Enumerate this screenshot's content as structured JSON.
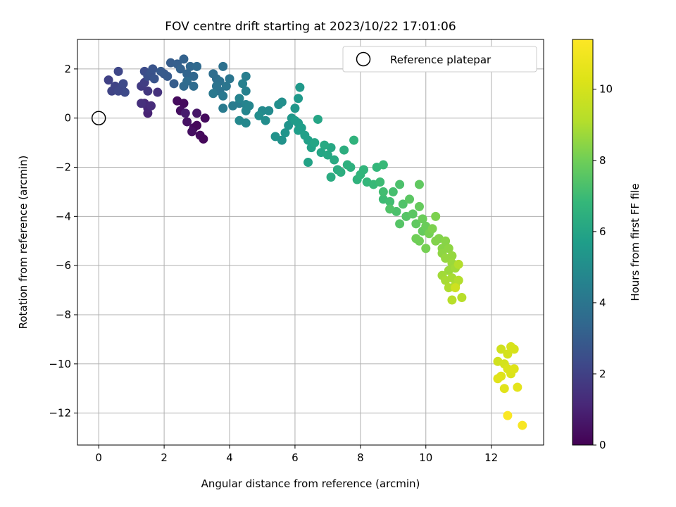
{
  "chart_data": {
    "type": "scatter",
    "title": "FOV centre drift starting at 2023/10/22 17:01:06",
    "xlabel": "Angular distance from reference (arcmin)",
    "ylabel": "Rotation from reference (arcmin)",
    "xlim": [
      -0.65,
      13.6
    ],
    "ylim": [
      -13.3,
      3.2
    ],
    "xticks": [
      0,
      2,
      4,
      6,
      8,
      10,
      12
    ],
    "yticks": [
      2,
      0,
      -2,
      -4,
      -6,
      -8,
      -10,
      -12
    ],
    "grid": true,
    "legend": {
      "position": "top-right",
      "entries": [
        "Reference platepar"
      ]
    },
    "reference_point": {
      "x": 0,
      "y": 0,
      "label": "Reference platepar"
    },
    "colorbar": {
      "label": "Hours from first FF file",
      "colormap": "viridis",
      "range": [
        0,
        11.4
      ],
      "ticks": [
        0,
        2,
        4,
        6,
        8,
        10
      ]
    },
    "points": [
      [
        2.4,
        0.7,
        0.3
      ],
      [
        2.6,
        0.6,
        0.3
      ],
      [
        2.5,
        0.3,
        0.4
      ],
      [
        2.7,
        -0.15,
        0.5
      ],
      [
        2.9,
        -0.4,
        0.3
      ],
      [
        3.0,
        -0.3,
        0.2
      ],
      [
        2.85,
        -0.55,
        0.4
      ],
      [
        3.1,
        -0.7,
        0.3
      ],
      [
        3.2,
        -0.85,
        0.2
      ],
      [
        3.25,
        0.0,
        0.3
      ],
      [
        3.0,
        0.2,
        0.6
      ],
      [
        2.65,
        0.2,
        0.8
      ],
      [
        1.5,
        0.2,
        1.0
      ],
      [
        1.5,
        0.4,
        1.1
      ],
      [
        1.4,
        0.6,
        1.2
      ],
      [
        1.6,
        0.5,
        1.3
      ],
      [
        1.3,
        0.6,
        1.4
      ],
      [
        1.8,
        1.05,
        1.5
      ],
      [
        1.5,
        1.1,
        1.7
      ],
      [
        1.3,
        1.3,
        1.8
      ],
      [
        1.4,
        1.45,
        1.9
      ],
      [
        0.3,
        1.55,
        2.0
      ],
      [
        0.4,
        1.1,
        2.1
      ],
      [
        0.5,
        1.3,
        2.1
      ],
      [
        0.6,
        1.9,
        2.2
      ],
      [
        0.7,
        1.2,
        2.2
      ],
      [
        0.8,
        1.05,
        2.3
      ],
      [
        0.75,
        1.4,
        2.3
      ],
      [
        0.6,
        1.1,
        2.2
      ],
      [
        1.4,
        1.9,
        2.4
      ],
      [
        1.5,
        1.7,
        2.5
      ],
      [
        1.6,
        1.85,
        2.6
      ],
      [
        1.7,
        1.6,
        2.7
      ],
      [
        1.65,
        2.0,
        2.7
      ],
      [
        2.0,
        1.8,
        2.8
      ],
      [
        2.1,
        1.7,
        2.9
      ],
      [
        1.9,
        1.9,
        2.9
      ],
      [
        2.2,
        2.25,
        3.0
      ],
      [
        2.3,
        1.4,
        3.0
      ],
      [
        2.4,
        2.2,
        3.1
      ],
      [
        2.5,
        2.0,
        3.2
      ],
      [
        2.6,
        2.4,
        3.2
      ],
      [
        2.7,
        1.8,
        3.3
      ],
      [
        2.8,
        2.1,
        3.4
      ],
      [
        2.9,
        1.7,
        3.4
      ],
      [
        3.0,
        2.1,
        3.5
      ],
      [
        2.6,
        1.3,
        3.5
      ],
      [
        2.9,
        1.3,
        3.6
      ],
      [
        2.7,
        1.5,
        3.6
      ],
      [
        3.5,
        1.8,
        3.7
      ],
      [
        3.6,
        1.6,
        3.7
      ],
      [
        3.7,
        1.5,
        3.8
      ],
      [
        3.8,
        2.1,
        3.8
      ],
      [
        3.7,
        1.1,
        3.9
      ],
      [
        3.6,
        1.3,
        3.9
      ],
      [
        3.9,
        1.3,
        4.0
      ],
      [
        4.0,
        1.6,
        4.0
      ],
      [
        3.8,
        0.9,
        4.1
      ],
      [
        3.5,
        1.0,
        4.1
      ],
      [
        3.8,
        0.4,
        4.2
      ],
      [
        4.1,
        0.5,
        4.3
      ],
      [
        4.3,
        0.6,
        4.3
      ],
      [
        4.5,
        1.7,
        4.4
      ],
      [
        4.4,
        1.4,
        4.5
      ],
      [
        4.5,
        1.1,
        4.5
      ],
      [
        4.3,
        0.8,
        4.6
      ],
      [
        4.5,
        0.55,
        4.6
      ],
      [
        4.5,
        0.3,
        4.7
      ],
      [
        4.6,
        0.5,
        4.7
      ],
      [
        4.3,
        -0.1,
        4.8
      ],
      [
        4.5,
        -0.2,
        4.8
      ],
      [
        5.0,
        0.3,
        4.9
      ],
      [
        5.2,
        0.3,
        4.9
      ],
      [
        4.9,
        0.1,
        5.0
      ],
      [
        5.1,
        -0.1,
        5.0
      ],
      [
        5.5,
        0.55,
        5.1
      ],
      [
        5.6,
        0.65,
        5.1
      ],
      [
        5.4,
        -0.75,
        5.2
      ],
      [
        5.6,
        -0.9,
        5.2
      ],
      [
        5.7,
        -0.6,
        5.3
      ],
      [
        5.8,
        -0.3,
        5.3
      ],
      [
        5.9,
        0.0,
        5.4
      ],
      [
        6.0,
        0.4,
        5.4
      ],
      [
        6.1,
        0.8,
        5.5
      ],
      [
        6.15,
        1.25,
        5.5
      ],
      [
        6.0,
        -0.1,
        5.6
      ],
      [
        6.1,
        -0.2,
        5.6
      ],
      [
        6.2,
        -0.4,
        5.7
      ],
      [
        6.1,
        -0.5,
        5.7
      ],
      [
        6.3,
        -0.7,
        5.8
      ],
      [
        6.4,
        -0.9,
        5.8
      ],
      [
        6.5,
        -1.2,
        5.9
      ],
      [
        6.4,
        -1.8,
        5.9
      ],
      [
        6.6,
        -1.0,
        6.0
      ],
      [
        6.7,
        -0.05,
        6.0
      ],
      [
        6.8,
        -1.4,
        6.0
      ],
      [
        7.0,
        -1.5,
        6.1
      ],
      [
        7.1,
        -1.2,
        6.1
      ],
      [
        6.9,
        -1.1,
        6.2
      ],
      [
        7.2,
        -1.7,
        6.2
      ],
      [
        7.3,
        -2.1,
        6.3
      ],
      [
        7.1,
        -2.4,
        6.3
      ],
      [
        7.4,
        -2.2,
        6.4
      ],
      [
        7.5,
        -1.3,
        6.4
      ],
      [
        7.6,
        -1.9,
        6.5
      ],
      [
        7.7,
        -2.0,
        6.5
      ],
      [
        7.8,
        -0.9,
        6.6
      ],
      [
        7.9,
        -2.5,
        6.6
      ],
      [
        8.0,
        -2.3,
        6.7
      ],
      [
        8.1,
        -2.1,
        6.7
      ],
      [
        8.2,
        -2.6,
        6.8
      ],
      [
        8.5,
        -2.0,
        6.8
      ],
      [
        8.7,
        -1.9,
        6.9
      ],
      [
        8.4,
        -2.7,
        6.9
      ],
      [
        8.6,
        -2.6,
        7.0
      ],
      [
        8.7,
        -3.3,
        7.0
      ],
      [
        8.9,
        -3.4,
        7.1
      ],
      [
        8.7,
        -3.0,
        7.1
      ],
      [
        9.0,
        -3.0,
        7.2
      ],
      [
        9.2,
        -2.7,
        7.3
      ],
      [
        9.1,
        -3.8,
        7.3
      ],
      [
        8.9,
        -3.7,
        7.4
      ],
      [
        9.3,
        -3.5,
        7.4
      ],
      [
        9.2,
        -4.3,
        7.5
      ],
      [
        9.4,
        -4.0,
        7.5
      ],
      [
        9.5,
        -3.3,
        7.6
      ],
      [
        9.6,
        -3.9,
        7.6
      ],
      [
        9.8,
        -2.7,
        7.7
      ],
      [
        9.7,
        -4.3,
        7.7
      ],
      [
        9.9,
        -4.6,
        7.8
      ],
      [
        9.8,
        -3.6,
        7.8
      ],
      [
        9.9,
        -4.1,
        7.9
      ],
      [
        10.0,
        -4.4,
        7.9
      ],
      [
        9.7,
        -4.9,
        8.0
      ],
      [
        9.8,
        -5.0,
        8.0
      ],
      [
        10.1,
        -4.7,
        8.1
      ],
      [
        10.0,
        -5.3,
        8.1
      ],
      [
        10.2,
        -4.5,
        8.2
      ],
      [
        10.3,
        -4.0,
        8.2
      ],
      [
        10.3,
        -5.0,
        8.3
      ],
      [
        10.4,
        -4.9,
        8.3
      ],
      [
        10.5,
        -5.3,
        8.4
      ],
      [
        10.6,
        -5.0,
        8.4
      ],
      [
        10.5,
        -5.5,
        8.5
      ],
      [
        10.7,
        -5.3,
        8.5
      ],
      [
        10.8,
        -5.6,
        8.6
      ],
      [
        10.6,
        -5.7,
        8.6
      ],
      [
        10.8,
        -5.9,
        8.7
      ],
      [
        10.7,
        -6.2,
        8.7
      ],
      [
        10.9,
        -6.1,
        8.8
      ],
      [
        10.5,
        -6.4,
        8.8
      ],
      [
        10.6,
        -6.6,
        8.9
      ],
      [
        10.8,
        -6.5,
        8.9
      ],
      [
        10.7,
        -6.9,
        9.0
      ],
      [
        10.9,
        -6.8,
        9.0
      ],
      [
        11.0,
        -6.6,
        9.1
      ],
      [
        11.0,
        -5.95,
        9.1
      ],
      [
        11.1,
        -7.3,
        9.2
      ],
      [
        10.8,
        -7.4,
        9.2
      ],
      [
        10.9,
        -6.9,
        9.8
      ],
      [
        12.2,
        -9.9,
        9.9
      ],
      [
        12.3,
        -9.4,
        9.9
      ],
      [
        12.4,
        -10.0,
        10.0
      ],
      [
        12.5,
        -9.6,
        10.0
      ],
      [
        12.6,
        -9.3,
        10.1
      ],
      [
        12.7,
        -9.4,
        10.1
      ],
      [
        12.5,
        -10.2,
        10.2
      ],
      [
        12.6,
        -10.4,
        10.2
      ],
      [
        12.7,
        -10.2,
        10.3
      ],
      [
        12.3,
        -10.5,
        10.3
      ],
      [
        12.2,
        -10.6,
        10.4
      ],
      [
        12.4,
        -11.0,
        10.4
      ],
      [
        12.8,
        -10.95,
        10.5
      ],
      [
        12.5,
        -12.1,
        11.3
      ],
      [
        12.95,
        -12.5,
        11.2
      ]
    ]
  }
}
